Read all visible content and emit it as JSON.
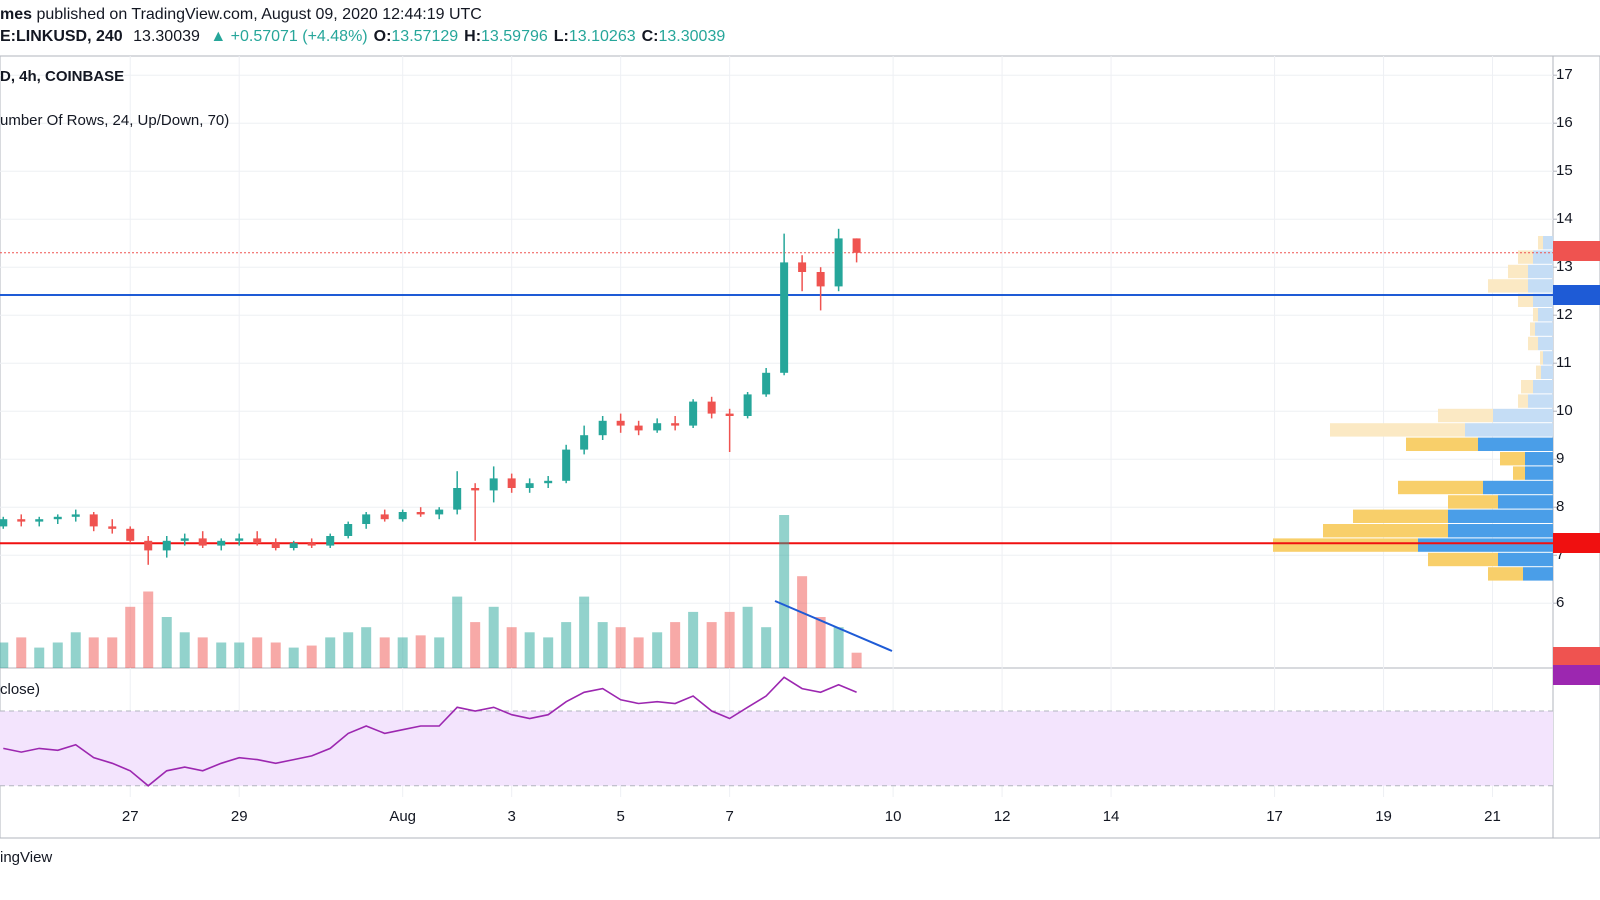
{
  "header": {
    "publisher": "mes",
    "published": "published on TradingView.com, August 09, 2020 12:44:19 UTC",
    "symbol": "E:LINKUSD, 240",
    "price": "13.30039",
    "change": "▲ +0.57071 (+4.48%)",
    "ohlc": [
      {
        "label": "O:",
        "value": "13.57129"
      },
      {
        "label": "H:",
        "value": "13.59796"
      },
      {
        "label": "L:",
        "value": "13.10263"
      },
      {
        "label": "C:",
        "value": "13.30039"
      }
    ],
    "main_legend": "D, 4h, COINBASE",
    "profile_legend": "umber Of Rows, 24, Up/Down, 70)",
    "rsi_legend": "close)"
  },
  "footer": "ingView",
  "chart_data": {
    "type": "candlestick",
    "xlim": [
      24.61,
      53.11
    ],
    "xticks": [
      27,
      29,
      {
        "value": 32,
        "label": "Aug"
      },
      {
        "value": 34,
        "label": "3"
      },
      {
        "value": 36,
        "label": "5"
      },
      {
        "value": 38,
        "label": "7"
      },
      {
        "value": 41,
        "label": "10"
      },
      {
        "value": 43,
        "label": "12"
      },
      {
        "value": 45,
        "label": "14"
      },
      {
        "value": 48,
        "label": "17"
      },
      {
        "value": 50,
        "label": "19"
      },
      {
        "value": 52,
        "label": "21"
      }
    ],
    "ylim": [
      4.65,
      17.4
    ],
    "yticks": [
      6,
      7,
      8,
      9,
      10,
      11,
      12,
      13,
      14,
      15,
      16,
      17
    ],
    "grid": true,
    "up_color": "#26a69a",
    "down_color": "#ef5350",
    "x": [
      24.67,
      25,
      25.33,
      25.67,
      26,
      26.33,
      26.67,
      27,
      27.33,
      27.67,
      28,
      28.33,
      28.67,
      29,
      29.33,
      29.67,
      30,
      30.33,
      30.67,
      31,
      31.33,
      31.67,
      32,
      32.33,
      32.67,
      33,
      33.33,
      33.67,
      34,
      34.33,
      34.67,
      35,
      35.33,
      35.67,
      36,
      36.33,
      36.67,
      37,
      37.33,
      37.67,
      38,
      38.33,
      38.67,
      39,
      39.33,
      39.67,
      40,
      40.33
    ],
    "open": [
      7.6,
      7.75,
      7.7,
      7.75,
      7.8,
      7.85,
      7.6,
      7.55,
      7.3,
      7.1,
      7.3,
      7.35,
      7.2,
      7.3,
      7.35,
      7.25,
      7.15,
      7.25,
      7.2,
      7.4,
      7.65,
      7.85,
      7.75,
      7.9,
      7.85,
      7.95,
      8.4,
      8.35,
      8.6,
      8.4,
      8.5,
      8.55,
      9.2,
      9.5,
      9.8,
      9.7,
      9.6,
      9.75,
      9.7,
      10.2,
      9.95,
      9.9,
      10.35,
      10.8,
      13.1,
      12.9,
      12.6,
      13.6
    ],
    "high": [
      7.8,
      7.85,
      7.8,
      7.85,
      7.95,
      7.9,
      7.75,
      7.6,
      7.4,
      7.4,
      7.45,
      7.5,
      7.35,
      7.45,
      7.5,
      7.35,
      7.3,
      7.35,
      7.45,
      7.7,
      7.9,
      7.95,
      7.95,
      8.0,
      8.0,
      8.75,
      8.5,
      8.85,
      8.7,
      8.6,
      8.65,
      9.3,
      9.7,
      9.9,
      9.95,
      9.8,
      9.85,
      9.9,
      10.25,
      10.3,
      10.05,
      10.4,
      10.9,
      13.7,
      13.25,
      13.0,
      13.8,
      13.6
    ],
    "low": [
      7.55,
      7.6,
      7.6,
      7.65,
      7.7,
      7.5,
      7.45,
      7.25,
      6.8,
      6.95,
      7.2,
      7.15,
      7.1,
      7.2,
      7.2,
      7.1,
      7.1,
      7.15,
      7.15,
      7.35,
      7.55,
      7.7,
      7.7,
      7.8,
      7.75,
      7.85,
      7.3,
      8.1,
      8.3,
      8.3,
      8.4,
      8.5,
      9.1,
      9.4,
      9.55,
      9.5,
      9.55,
      9.6,
      9.65,
      9.85,
      9.15,
      9.85,
      10.3,
      10.75,
      12.5,
      12.1,
      12.5,
      13.1
    ],
    "close": [
      7.75,
      7.7,
      7.75,
      7.8,
      7.85,
      7.6,
      7.55,
      7.3,
      7.1,
      7.3,
      7.35,
      7.2,
      7.3,
      7.35,
      7.25,
      7.15,
      7.25,
      7.2,
      7.4,
      7.65,
      7.85,
      7.75,
      7.9,
      7.85,
      7.95,
      8.4,
      8.35,
      8.6,
      8.4,
      8.5,
      8.55,
      9.2,
      9.5,
      9.8,
      9.7,
      9.6,
      9.75,
      9.7,
      10.2,
      9.95,
      9.9,
      10.35,
      10.8,
      13.1,
      12.9,
      12.6,
      13.6,
      13.3
    ],
    "volume": [
      25,
      30,
      20,
      25,
      35,
      30,
      30,
      60,
      75,
      50,
      35,
      30,
      25,
      25,
      30,
      25,
      20,
      22,
      30,
      35,
      40,
      30,
      30,
      32,
      30,
      70,
      45,
      60,
      40,
      35,
      30,
      45,
      70,
      45,
      40,
      30,
      35,
      45,
      55,
      45,
      55,
      60,
      40,
      150,
      90,
      50,
      40,
      15
    ],
    "levels": [
      {
        "value": 7.25,
        "color": "#f01010"
      },
      {
        "value": 12.42,
        "color": "#1e5bd6"
      }
    ],
    "last_price": 13.3,
    "rsi": {
      "values": [
        50,
        48,
        50,
        49,
        52,
        45,
        42,
        38,
        30,
        38,
        40,
        38,
        42,
        45,
        44,
        42,
        44,
        46,
        50,
        58,
        62,
        58,
        60,
        62,
        62,
        72,
        70,
        72,
        68,
        66,
        68,
        75,
        80,
        82,
        76,
        74,
        75,
        74,
        78,
        70,
        66,
        72,
        78,
        88,
        82,
        80,
        84,
        80
      ],
      "ylim": [
        24,
        93
      ],
      "bands": [
        30,
        70
      ],
      "color": "#9c27b0"
    },
    "volume_profile": {
      "price_range": [
        6.45,
        13.65
      ],
      "up": [
        30,
        55,
        135,
        105,
        105,
        55,
        70,
        28,
        28,
        75,
        88,
        60,
        25,
        20,
        12,
        10,
        15,
        18,
        15,
        20,
        25,
        25,
        20,
        10
      ],
      "down": [
        35,
        70,
        145,
        125,
        95,
        50,
        85,
        12,
        25,
        72,
        135,
        55,
        10,
        12,
        5,
        3,
        10,
        5,
        5,
        15,
        40,
        20,
        15,
        5
      ],
      "value_area_rows": [
        0,
        9
      ]
    }
  }
}
